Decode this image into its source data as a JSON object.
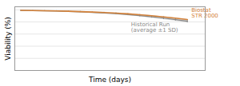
{
  "chart_data": {
    "type": "line",
    "xlabel": "Time (days)",
    "ylabel": "Viability (%)",
    "x": [
      0,
      1,
      2,
      3,
      4,
      5,
      6,
      7,
      8,
      9,
      10,
      11,
      12,
      13,
      14
    ],
    "series": [
      {
        "name": "Historical Run\n(average ±1 SD)",
        "color": "#888888",
        "values": [
          98.8,
          98.5,
          98.2,
          97.8,
          97.2,
          96.5,
          95.7,
          94.7,
          93.5,
          92.1,
          90.4,
          88.5,
          86.3,
          83.9,
          81.3
        ],
        "sd": [
          0.5,
          0.6,
          0.7,
          0.8,
          0.9,
          1.0,
          1.1,
          1.3,
          1.5,
          1.7,
          1.9,
          2.1,
          2.3,
          2.5,
          2.7
        ]
      },
      {
        "name": "Biostat\nSTR 2000",
        "color": "#d4823a",
        "values": [
          99.0,
          98.8,
          98.5,
          98.1,
          97.6,
          97.0,
          96.3,
          95.5,
          94.5,
          93.3,
          91.9,
          90.2,
          88.3,
          86.2,
          84.0
        ]
      }
    ],
    "annotations": [
      {
        "text": "Biostat\nSTR 2000",
        "x": 14,
        "y": 84.0,
        "color": "#d4823a"
      },
      {
        "text": "Historical Run\n(average ±1 SD)",
        "x": 9,
        "y": 92.1,
        "color": "#888888"
      }
    ],
    "xlim": [
      -0.5,
      15.5
    ],
    "ylim": [
      0,
      105
    ],
    "yticks": [
      0,
      20,
      40,
      60,
      80,
      100
    ],
    "grid": true,
    "tick_labels": false
  }
}
